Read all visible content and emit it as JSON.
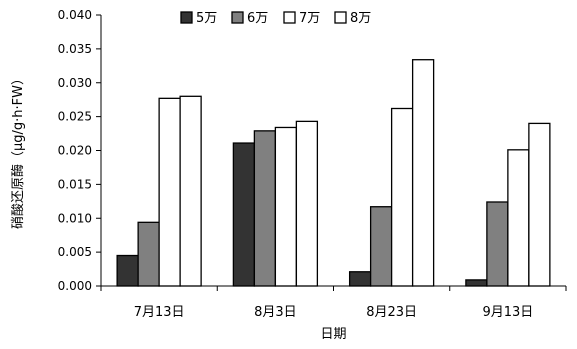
{
  "chart_data": {
    "type": "bar",
    "xlabel": "日期",
    "ylabel": "硝酸还原酶（μg/g·h·FW）",
    "categories": [
      "7月13日",
      "8月3日",
      "8月23日",
      "9月13日"
    ],
    "ylim": [
      0,
      0.04
    ],
    "yticks": [
      "0.000",
      "0.005",
      "0.010",
      "0.015",
      "0.020",
      "0.025",
      "0.030",
      "0.035",
      "0.040"
    ],
    "legend_position": "top",
    "grid": false,
    "series": [
      {
        "name": "5万",
        "color": "#333333",
        "values": [
          0.0045,
          0.0211,
          0.0021,
          0.0009
        ]
      },
      {
        "name": "6万",
        "color": "#808080",
        "values": [
          0.0094,
          0.0229,
          0.0117,
          0.0124
        ]
      },
      {
        "name": "7万",
        "color": "#ffffff",
        "values": [
          0.0277,
          0.0234,
          0.0262,
          0.0201
        ]
      },
      {
        "name": "8万",
        "color": "#ffffff",
        "values": [
          0.028,
          0.0243,
          0.0334,
          0.024
        ]
      }
    ]
  }
}
